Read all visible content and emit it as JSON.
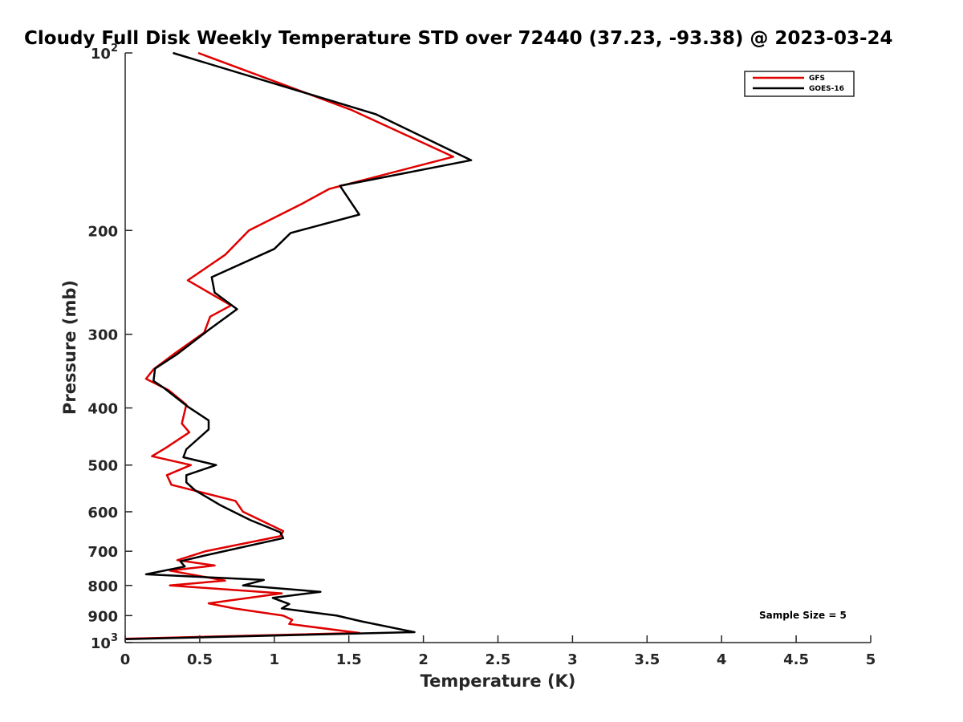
{
  "chart_data": {
    "type": "line",
    "title": "Cloudy Full Disk Weekly Temperature STD over 72440 (37.23, -93.38) @ 2023-03-24",
    "xlabel": "Temperature (K)",
    "ylabel": "Pressure (mb)",
    "xlim": [
      0,
      5
    ],
    "ylim": [
      1000,
      100
    ],
    "yscale": "log",
    "x_ticks": [
      0,
      0.5,
      1,
      1.5,
      2,
      2.5,
      3,
      3.5,
      4,
      4.5,
      5
    ],
    "x_tick_labels": [
      "0",
      "0.5",
      "1",
      "1.5",
      "2",
      "2.5",
      "3",
      "3.5",
      "4",
      "4.5",
      "5"
    ],
    "y_ticks": [
      100,
      200,
      300,
      400,
      500,
      600,
      700,
      800,
      900,
      1000
    ],
    "y_tick_labels": [
      {
        "base": "10",
        "exp": "2"
      },
      {
        "base": "200",
        "exp": ""
      },
      {
        "base": "300",
        "exp": ""
      },
      {
        "base": "400",
        "exp": ""
      },
      {
        "base": "500",
        "exp": ""
      },
      {
        "base": "600",
        "exp": ""
      },
      {
        "base": "700",
        "exp": ""
      },
      {
        "base": "800",
        "exp": ""
      },
      {
        "base": "900",
        "exp": ""
      },
      {
        "base": "10",
        "exp": "3"
      }
    ],
    "grid": false,
    "legend_position": "top-right",
    "annotation": "Sample Size = 5",
    "series": [
      {
        "name": "GFS",
        "color": "#e00000",
        "x": [
          0.49,
          1.52,
          2.2,
          1.37,
          1.19,
          0.83,
          0.67,
          0.42,
          0.71,
          0.57,
          0.53,
          0.32,
          0.19,
          0.14,
          0.29,
          0.41,
          0.38,
          0.43,
          0.27,
          0.18,
          0.44,
          0.28,
          0.31,
          0.74,
          0.79,
          1.06,
          1.04,
          0.54,
          0.35,
          0.6,
          0.3,
          0.67,
          0.3,
          1.05,
          0.56,
          0.73,
          1.06,
          1.12,
          1.1,
          1.57,
          0.0
        ],
        "y": [
          100,
          125,
          150,
          170,
          180,
          200,
          220,
          243,
          268,
          280,
          298,
          325,
          344,
          357,
          373,
          395,
          425,
          440,
          468,
          483,
          500,
          520,
          540,
          575,
          600,
          647,
          660,
          700,
          725,
          740,
          755,
          785,
          800,
          825,
          858,
          875,
          900,
          915,
          930,
          963,
          985
        ]
      },
      {
        "name": "GOES-16",
        "color": "#000000",
        "x": [
          0.32,
          1.68,
          2.32,
          1.44,
          1.57,
          1.11,
          1.0,
          0.58,
          0.6,
          0.75,
          0.56,
          0.35,
          0.2,
          0.19,
          0.26,
          0.42,
          0.56,
          0.56,
          0.41,
          0.39,
          0.61,
          0.41,
          0.41,
          0.47,
          0.64,
          0.84,
          1.04,
          1.06,
          0.53,
          0.37,
          0.4,
          0.14,
          0.93,
          0.79,
          1.31,
          0.99,
          1.1,
          1.05,
          1.42,
          1.58,
          1.94,
          0.0
        ],
        "y": [
          100,
          127,
          152,
          168,
          188,
          202,
          215,
          240,
          255,
          272,
          295,
          324,
          343,
          360,
          370,
          398,
          420,
          435,
          470,
          485,
          500,
          520,
          535,
          552,
          585,
          620,
          650,
          665,
          712,
          728,
          743,
          766,
          783,
          800,
          820,
          840,
          860,
          875,
          900,
          920,
          960,
          987
        ]
      }
    ]
  }
}
